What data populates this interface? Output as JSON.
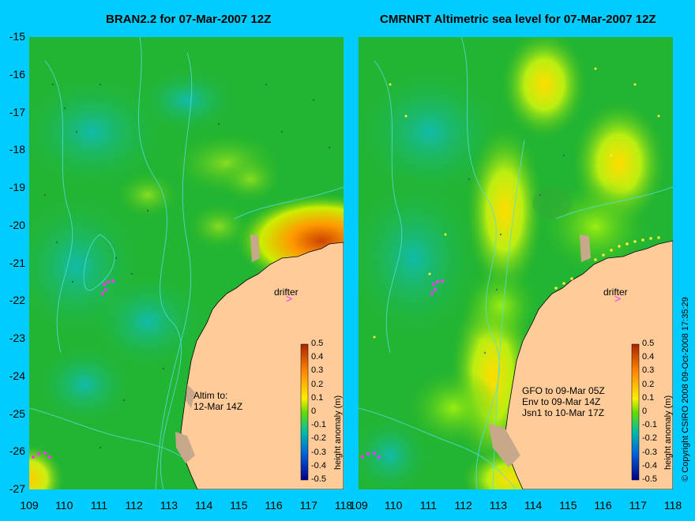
{
  "left_panel": {
    "title": "BRAN2.2 for 07-Mar-2007 12Z",
    "drifter_label": "drifter",
    "altim_note": "Altim to:\n12-Mar 14Z",
    "colorbar": {
      "label": "height anomaly (m)",
      "ticks": [
        "0.5",
        "0.4",
        "0.3",
        "0.2",
        "0.1",
        "0",
        "-0.1",
        "-0.2",
        "-0.3",
        "-0.4",
        "-0.5"
      ]
    }
  },
  "right_panel": {
    "title": "CMRNRT Altimetric sea level  for 07-Mar-2007 12Z",
    "drifter_label": "drifter",
    "altim_note": "GFO to 09-Mar 05Z\nEnv to 09-Mar 14Z\nJsn1 to 10-Mar 17Z",
    "colorbar": {
      "label": "height anomaly (m)",
      "ticks": [
        "0.5",
        "0.4",
        "0.3",
        "0.2",
        "0.1",
        "0",
        "-0.1",
        "-0.2",
        "-0.3",
        "-0.4",
        "-0.5"
      ]
    }
  },
  "axes": {
    "y_ticks": [
      "-15",
      "-16",
      "-17",
      "-18",
      "-19",
      "-20",
      "-21",
      "-22",
      "-23",
      "-24",
      "-25",
      "-26",
      "-27"
    ],
    "x_ticks": [
      "109",
      "110",
      "111",
      "112",
      "113",
      "114",
      "115",
      "116",
      "117",
      "118"
    ]
  },
  "copyright": "© Copyright CSIRO 2008    09-Oct-2008 17:35:29",
  "colors": {
    "background": "#00ccff",
    "land": "#ffcc99",
    "ocean_base": "#22bb22",
    "drifter_marker": "#ff33ff"
  }
}
